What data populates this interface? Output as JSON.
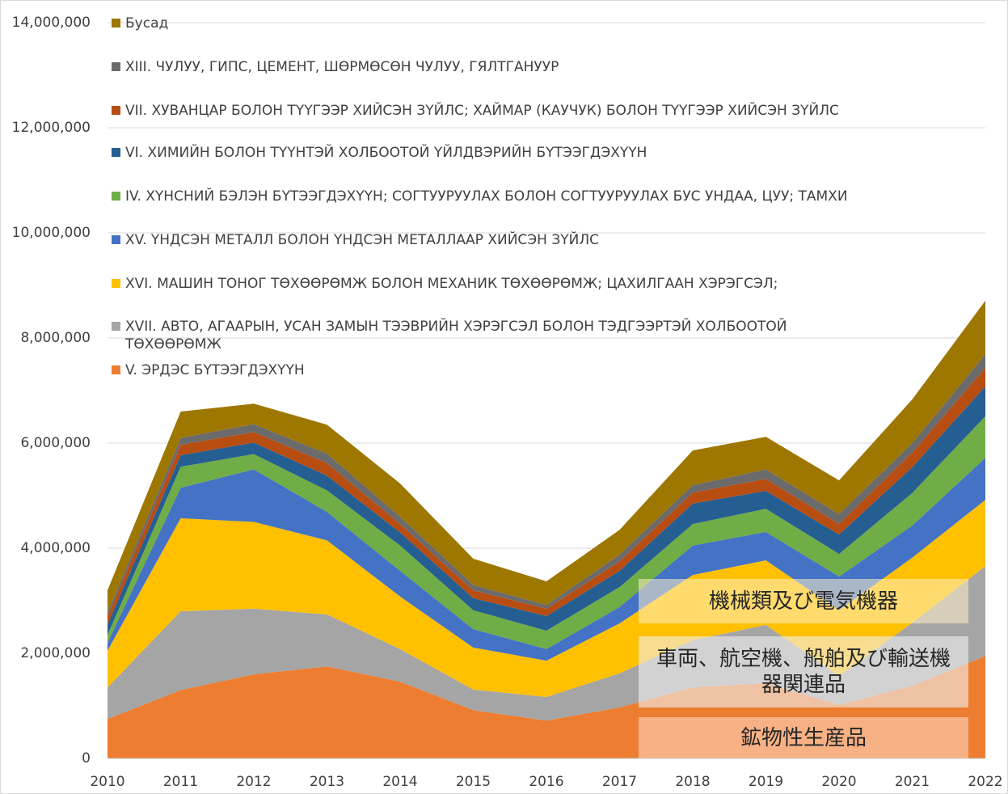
{
  "chart_data": {
    "type": "stacked_area",
    "categories": [
      "2010",
      "2011",
      "2012",
      "2013",
      "2014",
      "2015",
      "2016",
      "2017",
      "2018",
      "2019",
      "2020",
      "2021",
      "2022"
    ],
    "series": [
      {
        "name": "V. ЭРДЭС БҮТЭЭГДЭХҮҮН",
        "color": "#ed7d31",
        "values": [
          0.75,
          1.3,
          1.6,
          1.75,
          1.46,
          0.92,
          0.72,
          0.97,
          1.35,
          1.43,
          1.02,
          1.38,
          1.95
        ]
      },
      {
        "name": "XVII. АВТО, АГААРЫН, УСАН ЗАМЫН ТЭЭВРИЙН ХЭРЭГСЭЛ БОЛОН ТЭДГЭЭРТЭЙ ХОЛБООТОЙ ТӨХӨӨРӨМЖ",
        "color": "#a5a5a5",
        "values": [
          0.6,
          1.5,
          1.25,
          0.99,
          0.62,
          0.39,
          0.45,
          0.65,
          0.9,
          1.11,
          0.55,
          1.2,
          1.71
        ]
      },
      {
        "name": "XVI. МАШИН ТОНОГ ТӨХӨӨРӨМЖ БОЛОН МЕХАНИК ТӨХӨӨРӨМЖ; ЦАХИЛГААН ХЭРЭГСЭЛ;",
        "color": "#ffc000",
        "values": [
          0.7,
          1.77,
          1.65,
          1.41,
          1.0,
          0.8,
          0.69,
          0.95,
          1.24,
          1.23,
          1.25,
          1.24,
          1.26
        ]
      },
      {
        "name": "XV. ҮНДСЭН МЕТАЛЛ БОЛОН ҮНДСЭН МЕТАЛЛААР  ХИЙСЭН ЗҮЙЛС",
        "color": "#4472c4",
        "values": [
          0.15,
          0.58,
          1.0,
          0.54,
          0.49,
          0.35,
          0.22,
          0.31,
          0.56,
          0.54,
          0.64,
          0.61,
          0.8
        ]
      },
      {
        "name": "IV. ХҮНСНИЙ БЭЛЭН БҮТЭЭГДЭХҮҮН; СОГТУУРУУЛАХ БОЛОН СОГТУУРУУЛАХ БУС УНДАА, ЦУУ; ТАМХИ",
        "color": "#70ad47",
        "values": [
          0.15,
          0.4,
          0.29,
          0.41,
          0.48,
          0.36,
          0.35,
          0.38,
          0.41,
          0.44,
          0.43,
          0.62,
          0.79
        ]
      },
      {
        "name": "VI. ХИМИЙН БОЛОН ТҮҮНТЭЙ ХОЛБООТОЙ ҮЙЛДВЭРИЙН БҮТЭЭГДЭХҮҮН",
        "color": "#255e91",
        "values": [
          0.2,
          0.22,
          0.22,
          0.28,
          0.25,
          0.23,
          0.28,
          0.31,
          0.39,
          0.34,
          0.37,
          0.49,
          0.57
        ]
      },
      {
        "name": "VII. ХУВАНЦАР БОЛОН ТҮҮГЭЭР ХИЙСЭН ЗҮЙЛС; ХАЙМАР (КАУЧУК) БОЛОН ТҮҮГЭЭР ХИЙСЭН ЗҮЙЛС",
        "color": "#b84d12",
        "values": [
          0.15,
          0.2,
          0.2,
          0.24,
          0.16,
          0.15,
          0.14,
          0.18,
          0.21,
          0.23,
          0.2,
          0.28,
          0.35
        ]
      },
      {
        "name": "XIII. ЧУЛУУ, ГИПС, ЦЕМЕНТ, ШӨРМӨСӨН ЧУЛУУ, ГЯЛТГАНУУР",
        "color": "#6b6b6b",
        "values": [
          0.08,
          0.13,
          0.15,
          0.18,
          0.14,
          0.1,
          0.07,
          0.13,
          0.14,
          0.18,
          0.19,
          0.18,
          0.26
        ]
      },
      {
        "name": "Бусад",
        "color": "#9e7700",
        "values": [
          0.42,
          0.5,
          0.39,
          0.55,
          0.63,
          0.5,
          0.45,
          0.47,
          0.66,
          0.62,
          0.64,
          0.83,
          1.02
        ]
      }
    ],
    "value_unit_multiplier": 1000000,
    "ylim": [
      0,
      14000000
    ],
    "yticks": [
      0,
      {
        "value": 2000000,
        "label": "2,000,000"
      },
      {
        "value": 4000000,
        "label": "4,000,000"
      },
      {
        "value": 6000000,
        "label": "6,000,000"
      },
      {
        "value": 8000000,
        "label": "8,000,000"
      },
      {
        "value": 10000000,
        "label": "10,000,000"
      },
      {
        "value": 12000000,
        "label": "12,000,000"
      },
      {
        "value": 14000000,
        "label": "14,000,000"
      }
    ],
    "grid": true,
    "legend": "top-left",
    "annotations": [
      {
        "text": "機械類及び電気機器",
        "color": "rgba(255,240,200,0.55)"
      },
      {
        "text": "車両、航空機、船舶及び輸送機器関連品",
        "color": "rgba(240,240,240,0.6)"
      },
      {
        "text": "鉱物性生産品",
        "color": "rgba(255,220,200,0.55)"
      }
    ]
  }
}
